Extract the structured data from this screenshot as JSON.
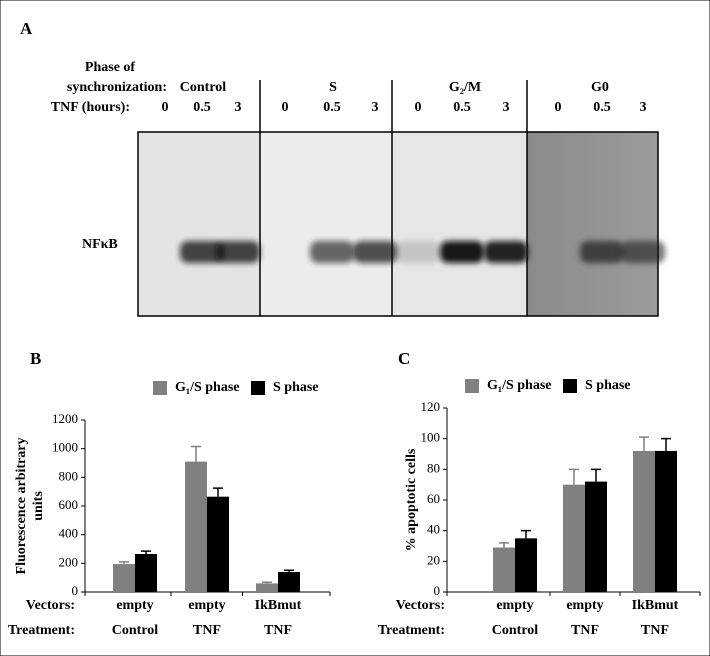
{
  "panel_a": {
    "label": "A",
    "phase_label": [
      "Phase of",
      "synchronization:"
    ],
    "tnf_label": "TNF (hours):",
    "band_label": "NFκB",
    "groups": [
      {
        "name": "Control",
        "times": [
          0,
          0.5,
          3
        ]
      },
      {
        "name": "S",
        "times": [
          0,
          0.5,
          3
        ]
      },
      {
        "name": "G₂/M",
        "times": [
          0,
          0.5,
          3
        ]
      },
      {
        "name": "G0",
        "times": [
          0,
          0.5,
          3
        ]
      }
    ]
  },
  "chart_data": [
    {
      "type": "bar",
      "panel": "B",
      "ylabel": [
        "Fluorescence arbitrary",
        "units"
      ],
      "row_labels": [
        "Vectors:",
        "Treatment:"
      ],
      "vectors": [
        "empty",
        "empty",
        "IkBmut"
      ],
      "treatments": [
        "Control",
        "TNF",
        "TNF"
      ],
      "ylim": [
        0,
        1200
      ],
      "yticks": [
        0,
        200,
        400,
        600,
        800,
        1000,
        1200
      ],
      "series": [
        {
          "name": "G₁/S phase",
          "color": "#808080",
          "values": [
            195,
            910,
            60
          ],
          "errors": [
            15,
            105,
            8
          ]
        },
        {
          "name": "S phase",
          "color": "#000000",
          "values": [
            265,
            665,
            140
          ],
          "errors": [
            20,
            60,
            12
          ]
        }
      ]
    },
    {
      "type": "bar",
      "panel": "C",
      "ylabel": [
        "% apoptotic cells"
      ],
      "row_labels": [
        "Vectors:",
        "Treatment:"
      ],
      "vectors": [
        "empty",
        "empty",
        "IkBmut"
      ],
      "treatments": [
        "Control",
        "TNF",
        "TNF"
      ],
      "ylim": [
        0,
        120
      ],
      "yticks": [
        0,
        20,
        40,
        60,
        80,
        100,
        120
      ],
      "series": [
        {
          "name": "G₁/S phase",
          "color": "#808080",
          "values": [
            29,
            70,
            92
          ],
          "errors": [
            3,
            10,
            9
          ]
        },
        {
          "name": "S phase",
          "color": "#000000",
          "values": [
            35,
            72,
            92
          ],
          "errors": [
            5,
            8,
            8
          ]
        }
      ]
    }
  ]
}
